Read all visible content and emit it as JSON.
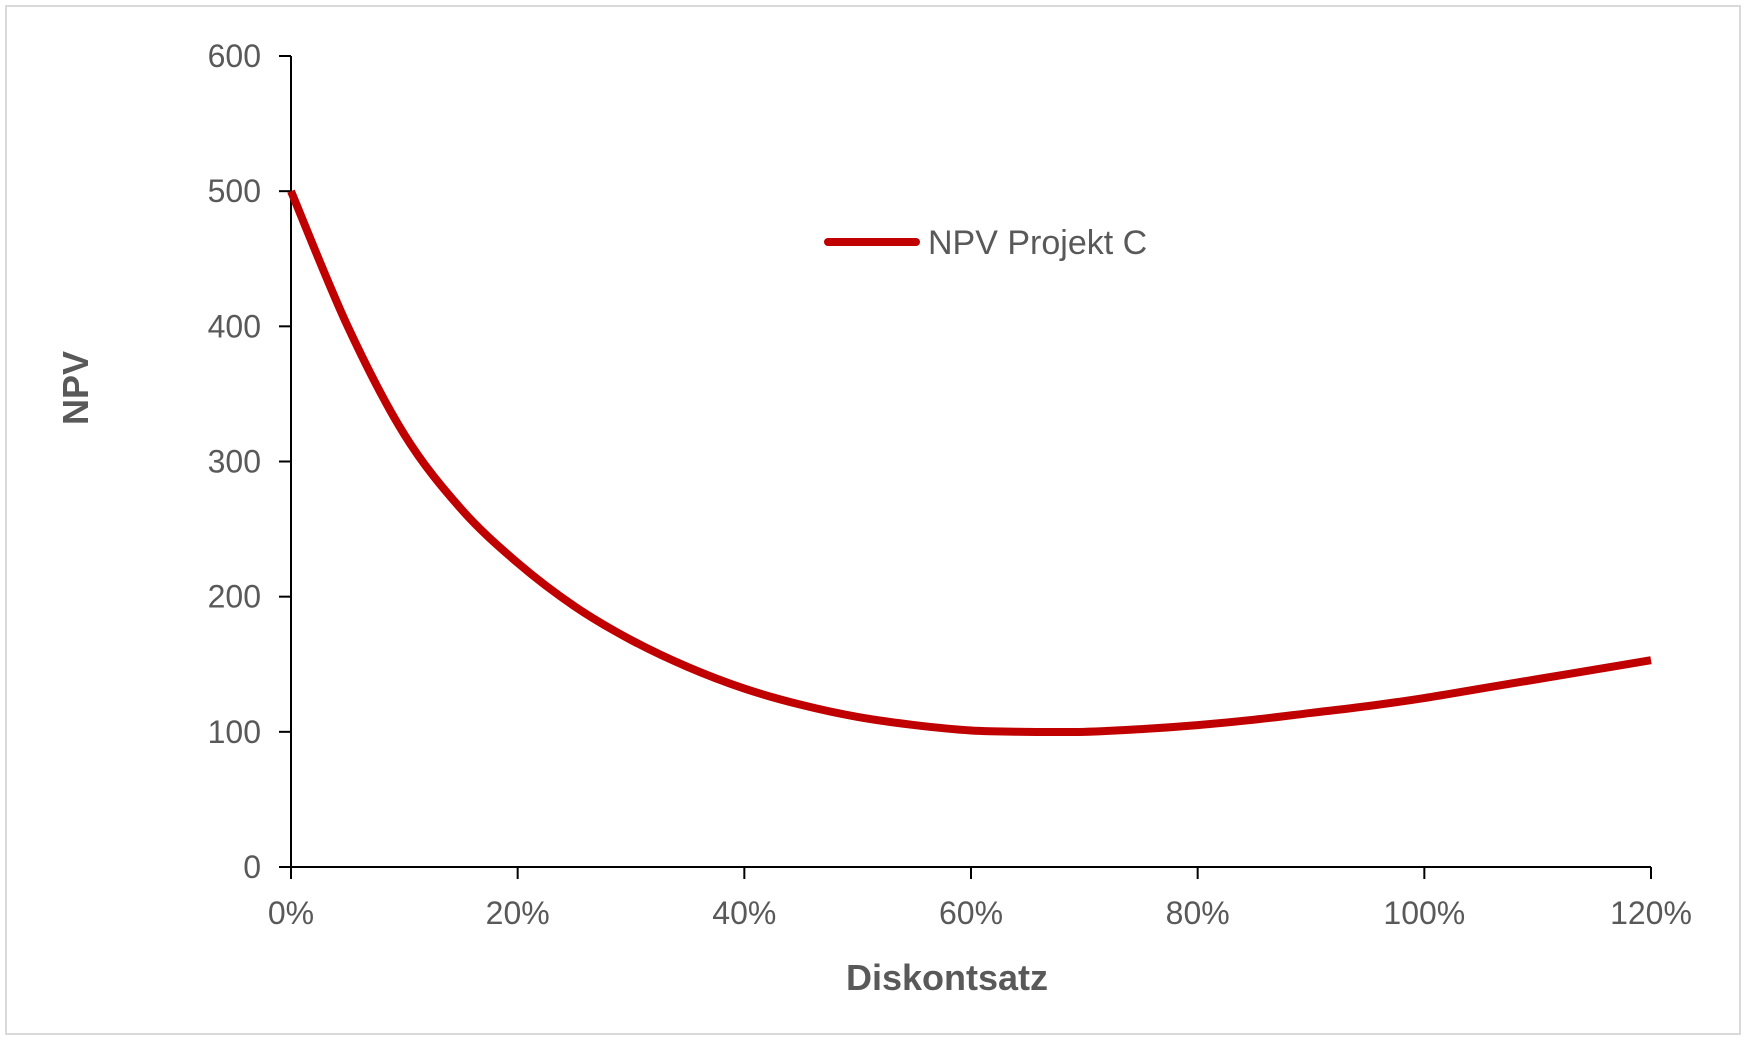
{
  "chart_data": {
    "type": "line",
    "xlabel": "Diskontsatz",
    "ylabel": "NPV",
    "xlim": [
      0,
      1.2
    ],
    "ylim": [
      0,
      600
    ],
    "x_ticks": [
      0,
      0.2,
      0.4,
      0.6,
      0.8,
      1.0,
      1.2
    ],
    "x_tick_labels": [
      "0%",
      "20%",
      "40%",
      "60%",
      "80%",
      "100%",
      "120%"
    ],
    "y_ticks": [
      0,
      100,
      200,
      300,
      400,
      500,
      600
    ],
    "y_tick_labels": [
      "0",
      "100",
      "200",
      "300",
      "400",
      "500",
      "600"
    ],
    "grid": false,
    "legend_position": "top-center",
    "series": [
      {
        "name": "NPV Projekt C",
        "color": "#c00000",
        "x": [
          0,
          0.05,
          0.1,
          0.15,
          0.2,
          0.25,
          0.3,
          0.35,
          0.4,
          0.45,
          0.5,
          0.55,
          0.6,
          0.65,
          0.7,
          0.75,
          0.8,
          0.85,
          0.9,
          0.95,
          1.0,
          1.05,
          1.1,
          1.15,
          1.2
        ],
        "values": [
          500,
          400,
          320,
          265,
          225,
          193,
          168,
          148,
          132,
          120,
          111,
          105,
          101,
          100,
          100,
          102,
          105,
          109,
          114,
          119,
          125,
          132,
          139,
          146,
          153
        ]
      }
    ]
  }
}
